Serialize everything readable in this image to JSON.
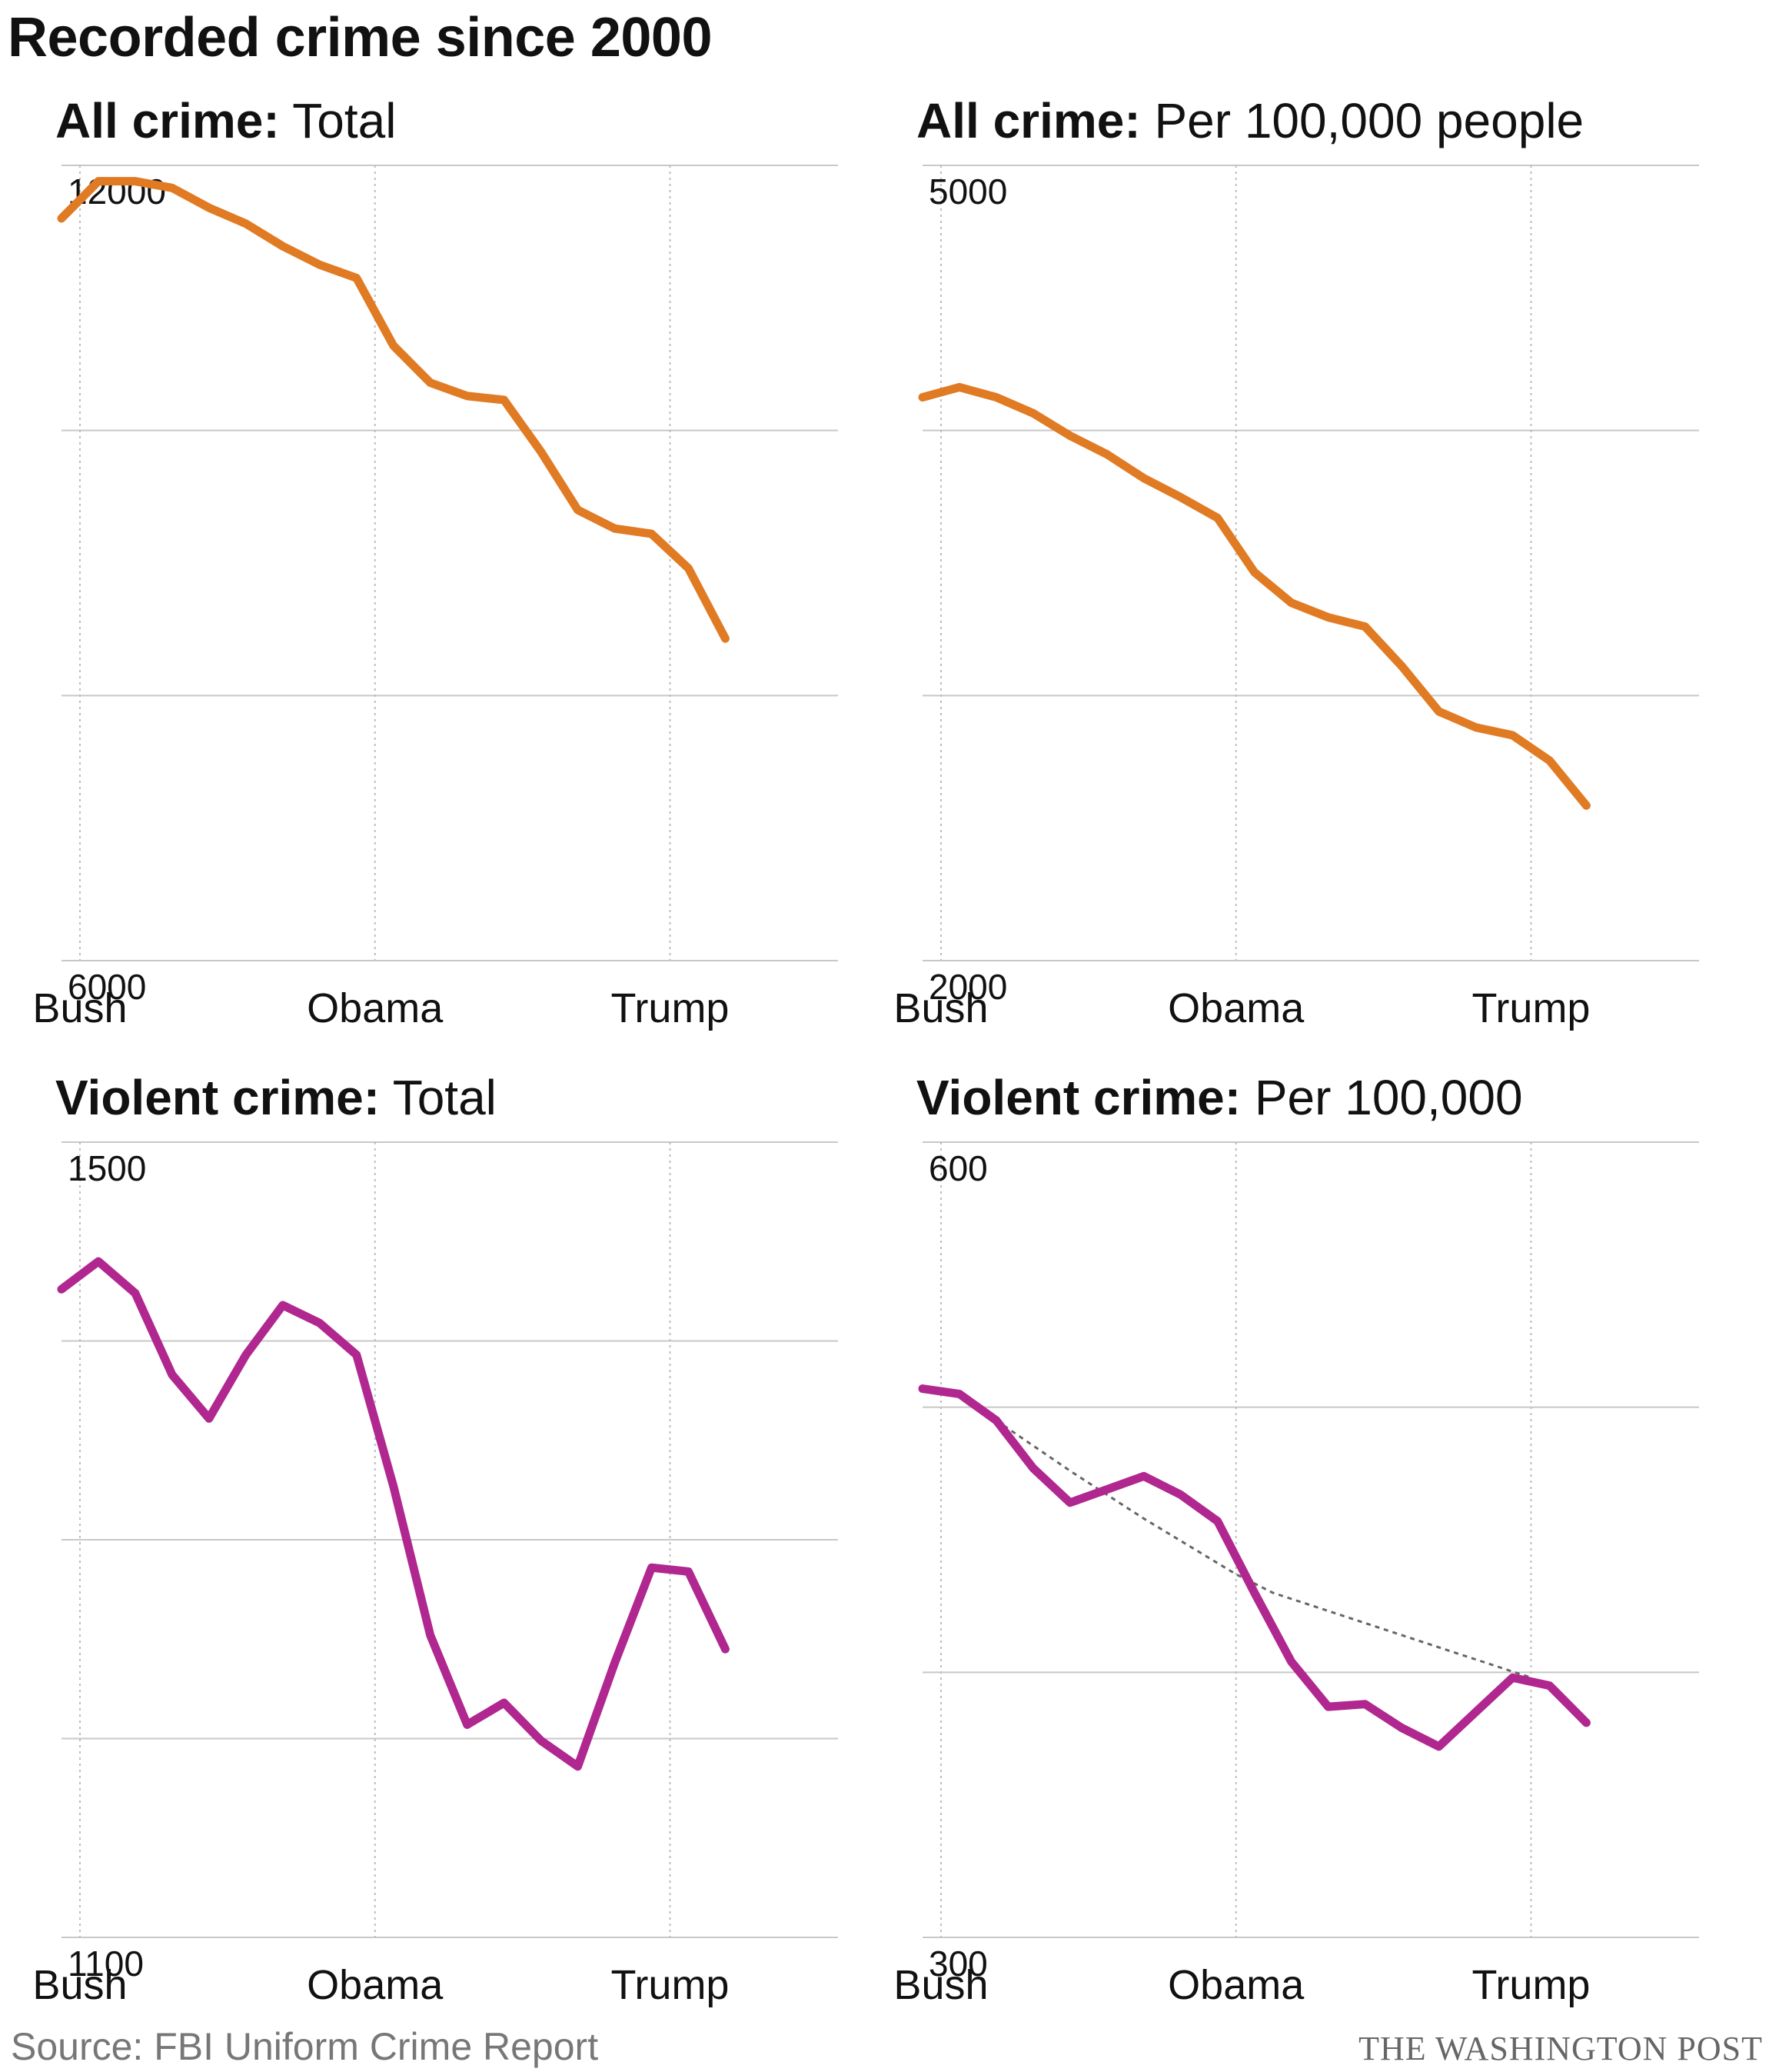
{
  "title": "Recorded crime since 2000",
  "source": "Source: FBI Uniform Crime Report",
  "credit": "THE WASHINGTON POST",
  "chart_data": [
    {
      "type": "line",
      "title_bold": "All crime:",
      "title_rest": " Total",
      "color": "#e07b24",
      "ylim": [
        6000,
        12000
      ],
      "yticks": [
        6000,
        8000,
        10000,
        12000
      ],
      "ytick_labels": [
        "6000",
        "",
        "",
        "12000"
      ],
      "xlim": [
        2000,
        2018.7
      ],
      "x_markers": [
        {
          "x": 2000.5,
          "label": "Bush"
        },
        {
          "x": 2008.5,
          "label": "Obama"
        },
        {
          "x": 2016.5,
          "label": "Trump"
        }
      ],
      "grid": true,
      "x": [
        2000,
        2001,
        2002,
        2003,
        2004,
        2005,
        2006,
        2007,
        2008,
        2009,
        2010,
        2011,
        2012,
        2013,
        2014,
        2015,
        2016,
        2017,
        2018
      ],
      "values": [
        11600,
        11880,
        11880,
        11830,
        11680,
        11560,
        11390,
        11250,
        11150,
        10640,
        10360,
        10260,
        10230,
        9840,
        9400,
        9260,
        9220,
        8960,
        8430
      ]
    },
    {
      "type": "line",
      "title_bold": "All crime:",
      "title_rest": " Per 100,000 people",
      "color": "#e07b24",
      "ylim": [
        2000,
        5000
      ],
      "yticks": [
        2000,
        3000,
        4000,
        5000
      ],
      "ytick_labels": [
        "2000",
        "",
        "",
        "5000"
      ],
      "xlim": [
        2000,
        2018.7
      ],
      "x_markers": [
        {
          "x": 2000.5,
          "label": "Bush"
        },
        {
          "x": 2008.5,
          "label": "Obama"
        },
        {
          "x": 2016.5,
          "label": "Trump"
        }
      ],
      "grid": true,
      "x": [
        2000,
        2001,
        2002,
        2003,
        2004,
        2005,
        2006,
        2007,
        2008,
        2009,
        2010,
        2011,
        2012,
        2013,
        2014,
        2015,
        2016,
        2017,
        2018
      ],
      "values": [
        4125,
        4163,
        4125,
        4065,
        3980,
        3910,
        3820,
        3748,
        3670,
        3465,
        3350,
        3295,
        3260,
        3110,
        2940,
        2880,
        2850,
        2755,
        2585
      ]
    },
    {
      "type": "line",
      "title_bold": "Violent crime:",
      "title_rest": " Total",
      "color": "#b02790",
      "ylim": [
        1100,
        1500
      ],
      "yticks": [
        1100,
        1200,
        1300,
        1400,
        1500
      ],
      "ytick_labels": [
        "1100",
        "",
        "",
        "",
        "1500"
      ],
      "xlim": [
        2000,
        2018.7
      ],
      "x_markers": [
        {
          "x": 2000.5,
          "label": "Bush"
        },
        {
          "x": 2008.5,
          "label": "Obama"
        },
        {
          "x": 2016.5,
          "label": "Trump"
        }
      ],
      "grid": true,
      "x": [
        2000,
        2001,
        2002,
        2003,
        2004,
        2005,
        2006,
        2007,
        2008,
        2009,
        2010,
        2011,
        2012,
        2013,
        2014,
        2015,
        2016,
        2017,
        2018
      ],
      "values": [
        1426,
        1440,
        1424,
        1383,
        1361,
        1393,
        1418,
        1409,
        1393,
        1327,
        1252,
        1207,
        1218,
        1199,
        1186,
        1238,
        1286,
        1284,
        1245
      ]
    },
    {
      "type": "line",
      "title_bold": "Violent crime:",
      "title_rest": " Per 100,000",
      "color": "#b02790",
      "ylim": [
        300,
        600
      ],
      "yticks": [
        300,
        400,
        500,
        600
      ],
      "ytick_labels": [
        "300",
        "",
        "",
        "600"
      ],
      "xlim": [
        2000,
        2018.7
      ],
      "x_markers": [
        {
          "x": 2000.5,
          "label": "Bush"
        },
        {
          "x": 2008.5,
          "label": "Obama"
        },
        {
          "x": 2016.5,
          "label": "Trump"
        }
      ],
      "grid": true,
      "x": [
        2000,
        2001,
        2002,
        2003,
        2004,
        2005,
        2006,
        2007,
        2008,
        2009,
        2010,
        2011,
        2012,
        2013,
        2014,
        2015,
        2016,
        2017,
        2018
      ],
      "values": [
        507,
        505,
        495,
        477,
        464,
        469,
        474,
        467,
        457,
        430,
        404,
        387,
        388,
        379,
        372,
        385,
        398,
        395,
        381
      ],
      "trend": {
        "x": [
          2002,
          2004,
          2006,
          2008.5,
          2009.5,
          2016.5
        ],
        "values": [
          495,
          476,
          458,
          437,
          430,
          398
        ]
      }
    }
  ]
}
